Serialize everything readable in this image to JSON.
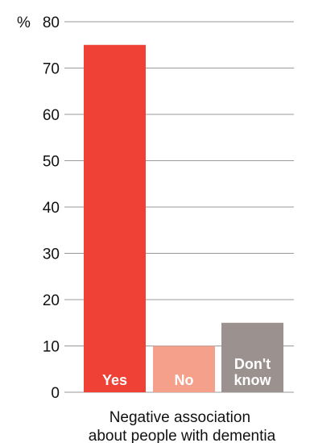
{
  "chart_data": {
    "type": "bar",
    "unit_label": "%",
    "categories": [
      "Yes",
      "No",
      "Don't know"
    ],
    "values": [
      75,
      10,
      15
    ],
    "bar_label_lines": [
      [
        "Yes"
      ],
      [
        "No"
      ],
      [
        "Don't",
        "know"
      ]
    ],
    "colors": [
      "#ef4135",
      "#f5a08a",
      "#9b9290"
    ],
    "ylim": [
      0,
      80
    ],
    "yticks": [
      0,
      10,
      20,
      30,
      40,
      50,
      60,
      70,
      80
    ],
    "xlabel_lines": [
      "Negative association",
      "about people with dementia"
    ],
    "grid": true
  }
}
